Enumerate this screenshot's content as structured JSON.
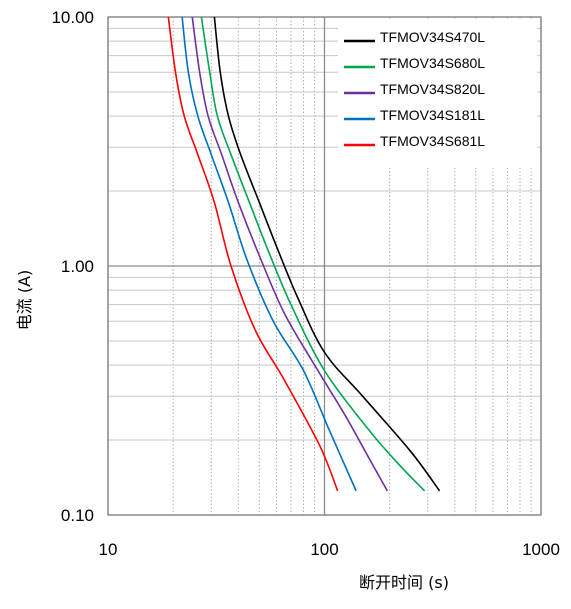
{
  "chart_data": {
    "type": "line",
    "xlabel": "断开时间 (s)",
    "ylabel": "电流 (A)",
    "x_scale": "log",
    "y_scale": "log",
    "xlim": [
      10,
      1000
    ],
    "ylim": [
      0.1,
      10
    ],
    "x_ticks": [
      "10",
      "100",
      "1000"
    ],
    "y_ticks": [
      "0.10",
      "1.00",
      "10.00"
    ],
    "grid": true,
    "legend_position": "top-right",
    "series": [
      {
        "name": "TFMOV34S470L",
        "color": "#000000",
        "points": [
          [
            31,
            10
          ],
          [
            33,
            6
          ],
          [
            36,
            4
          ],
          [
            41,
            2.8
          ],
          [
            50,
            1.8
          ],
          [
            60,
            1.2
          ],
          [
            75,
            0.75
          ],
          [
            100,
            0.45
          ],
          [
            150,
            0.3
          ],
          [
            250,
            0.18
          ],
          [
            340,
            0.125
          ]
        ]
      },
      {
        "name": "TFMOV34S680L",
        "color": "#00a651",
        "points": [
          [
            27,
            10
          ],
          [
            29.5,
            6
          ],
          [
            32,
            4
          ],
          [
            37,
            2.8
          ],
          [
            45,
            1.8
          ],
          [
            55,
            1.15
          ],
          [
            70,
            0.7
          ],
          [
            100,
            0.38
          ],
          [
            160,
            0.22
          ],
          [
            220,
            0.16
          ],
          [
            290,
            0.125
          ]
        ]
      },
      {
        "name": "TFMOV34S820L",
        "color": "#7030a0",
        "points": [
          [
            24.5,
            10
          ],
          [
            26.5,
            6
          ],
          [
            29,
            4
          ],
          [
            33.5,
            2.8
          ],
          [
            40,
            1.8
          ],
          [
            50,
            1.1
          ],
          [
            65,
            0.65
          ],
          [
            90,
            0.4
          ],
          [
            125,
            0.25
          ],
          [
            160,
            0.17
          ],
          [
            195,
            0.125
          ]
        ]
      },
      {
        "name": "TFMOV34S181L",
        "color": "#0070c0",
        "points": [
          [
            22,
            10
          ],
          [
            23.5,
            6
          ],
          [
            26,
            4
          ],
          [
            30,
            2.8
          ],
          [
            36,
            1.8
          ],
          [
            44,
            1.05
          ],
          [
            58,
            0.6
          ],
          [
            80,
            0.38
          ],
          [
            105,
            0.22
          ],
          [
            140,
            0.125
          ]
        ]
      },
      {
        "name": "TFMOV34S681L",
        "color": "#ff0000",
        "points": [
          [
            19,
            10
          ],
          [
            20.5,
            6
          ],
          [
            22.5,
            4
          ],
          [
            26,
            2.8
          ],
          [
            31,
            1.8
          ],
          [
            37,
            1.0
          ],
          [
            48,
            0.55
          ],
          [
            65,
            0.35
          ],
          [
            95,
            0.19
          ],
          [
            115,
            0.125
          ]
        ]
      }
    ]
  }
}
